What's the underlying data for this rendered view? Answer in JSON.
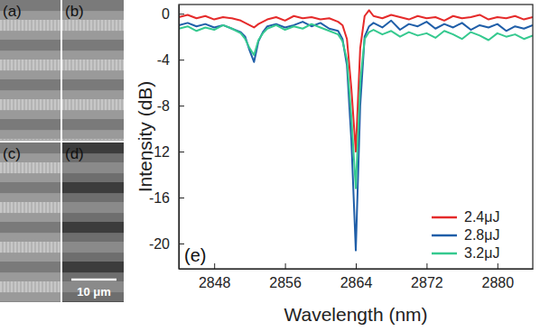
{
  "image_panels": {
    "labels": [
      "(a)",
      "(b)",
      "(c)",
      "(d)"
    ],
    "scale_bar_label": "10 μm"
  },
  "chart_data": {
    "type": "line",
    "annotations": [
      "(e)"
    ],
    "x_label": "Wavelength (nm)",
    "y_label": "Intensity (dB)",
    "xlim": [
      2844,
      2884
    ],
    "ylim": [
      -22.2,
      0.8
    ],
    "xticks": [
      2848,
      2856,
      2864,
      2872,
      2880
    ],
    "yticks": [
      0,
      -4,
      -8,
      -12,
      -16,
      -20
    ],
    "grid": false,
    "legend": "lower right",
    "x": [
      2844,
      2845,
      2846,
      2847,
      2848,
      2849,
      2850,
      2851,
      2851.5,
      2852,
      2852.5,
      2853,
      2853.5,
      2854,
      2855,
      2856,
      2857,
      2858,
      2859,
      2860,
      2861,
      2862,
      2862.5,
      2863,
      2863.5,
      2864,
      2864.5,
      2865,
      2865.5,
      2866,
      2867,
      2868,
      2869,
      2870,
      2871,
      2872,
      2873,
      2874,
      2875,
      2876,
      2877,
      2878,
      2879,
      2880,
      2881,
      2882,
      2883,
      2884
    ],
    "series": [
      {
        "name": "2.4μJ",
        "color": "#e52a2a",
        "values": [
          -0.3,
          -0.1,
          -0.4,
          -0.2,
          -0.5,
          -0.3,
          -0.4,
          -0.6,
          -0.8,
          -1.0,
          -1.2,
          -0.9,
          -0.7,
          -0.5,
          -0.3,
          -0.6,
          -0.2,
          -0.4,
          -0.3,
          -0.5,
          -0.4,
          -0.7,
          -1.0,
          -2.2,
          -6.5,
          -12.0,
          -3.0,
          -0.2,
          0.3,
          -0.2,
          -0.4,
          -0.1,
          -0.3,
          -0.5,
          -0.2,
          -0.4,
          -0.3,
          -0.6,
          -0.2,
          -0.4,
          -0.3,
          -0.1,
          -0.5,
          -0.3,
          -0.4,
          -0.2,
          -0.5,
          -0.3
        ]
      },
      {
        "name": "2.8μJ",
        "color": "#1f5ea8",
        "values": [
          -1.0,
          -0.8,
          -1.1,
          -0.9,
          -1.2,
          -1.0,
          -1.3,
          -1.6,
          -2.0,
          -3.2,
          -4.2,
          -2.4,
          -1.6,
          -1.1,
          -0.9,
          -1.2,
          -1.0,
          -0.7,
          -1.1,
          -0.8,
          -1.3,
          -1.5,
          -2.2,
          -4.5,
          -11.0,
          -20.6,
          -8.0,
          -2.0,
          -1.1,
          -0.8,
          -1.2,
          -0.6,
          -1.4,
          -0.9,
          -1.1,
          -0.7,
          -1.3,
          -0.9,
          -1.2,
          -0.8,
          -1.4,
          -1.0,
          -1.2,
          -0.9,
          -1.5,
          -1.1,
          -1.3,
          -1.0
        ]
      },
      {
        "name": "3.2μJ",
        "color": "#35c98f",
        "values": [
          -1.3,
          -1.1,
          -1.5,
          -1.2,
          -1.4,
          -1.0,
          -1.3,
          -1.7,
          -2.2,
          -3.0,
          -3.6,
          -2.3,
          -1.7,
          -1.3,
          -1.0,
          -1.4,
          -1.1,
          -1.3,
          -0.9,
          -1.2,
          -1.5,
          -1.8,
          -2.4,
          -4.0,
          -9.0,
          -15.2,
          -6.0,
          -2.2,
          -1.6,
          -1.4,
          -1.8,
          -1.5,
          -2.0,
          -1.6,
          -1.9,
          -1.7,
          -2.1,
          -1.5,
          -1.8,
          -2.2,
          -1.6,
          -1.9,
          -2.3,
          -1.7,
          -2.0,
          -1.8,
          -2.2,
          -1.9
        ]
      }
    ]
  }
}
